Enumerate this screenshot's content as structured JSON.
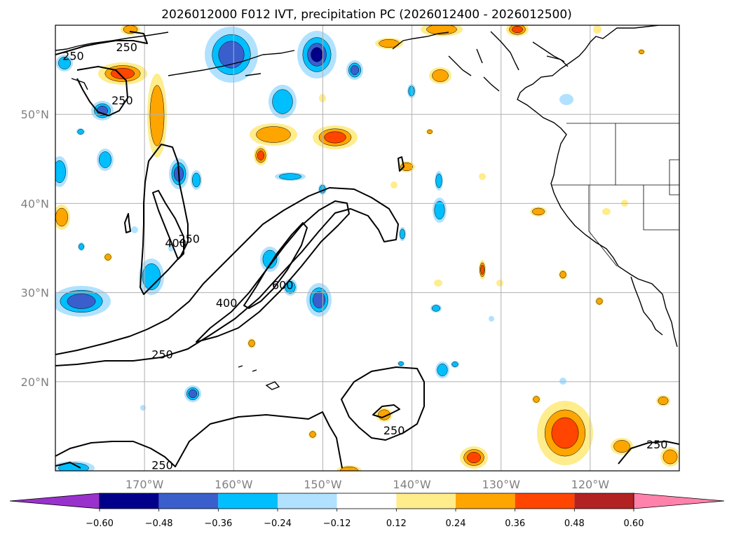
{
  "chart_data": {
    "type": "map",
    "title": "2026012000 F012 IVT, precipitation PC (2026012400 - 2026012500)",
    "lon_range": [
      -180,
      -110
    ],
    "lat_range": [
      10,
      60
    ],
    "lon_ticks": [
      "170°W",
      "160°W",
      "150°W",
      "140°W",
      "130°W",
      "120°W"
    ],
    "lat_ticks": [
      "50°N",
      "40°N",
      "30°N",
      "20°N"
    ],
    "ivt_contour_levels": [
      250,
      400,
      600
    ],
    "ivt_contour_labels": [
      {
        "text": "250",
        "lon": -178.0,
        "lat": 56.5
      },
      {
        "text": "250",
        "lon": -172.0,
        "lat": 57.5
      },
      {
        "text": "250",
        "lon": -172.5,
        "lat": 51.5
      },
      {
        "text": "250",
        "lon": -165.0,
        "lat": 36.0
      },
      {
        "text": "400",
        "lon": -166.5,
        "lat": 35.5
      },
      {
        "text": "600",
        "lon": -154.5,
        "lat": 30.8
      },
      {
        "text": "400",
        "lon": -160.8,
        "lat": 28.8
      },
      {
        "text": "250",
        "lon": -168.0,
        "lat": 23.0
      },
      {
        "text": "250",
        "lon": -142.0,
        "lat": 14.5
      },
      {
        "text": "250",
        "lon": -168.0,
        "lat": 10.6
      },
      {
        "text": "250",
        "lon": -112.5,
        "lat": 12.9
      }
    ],
    "colorbar": {
      "ticks": [
        "−0.60",
        "−0.48",
        "−0.36",
        "−0.24",
        "−0.12",
        "0.12",
        "0.24",
        "0.36",
        "0.48",
        "0.60"
      ],
      "colors": [
        "#9932cc",
        "#00008b",
        "#3a5fcd",
        "#00bfff",
        "#b0e2ff",
        "#ffffff",
        "#ffec8b",
        "#ffa500",
        "#ff4500",
        "#b22222",
        "#ff82ab"
      ],
      "extend": "both"
    },
    "grid": true,
    "features": [
      "coastlines",
      "state borders",
      "contour labels"
    ]
  }
}
